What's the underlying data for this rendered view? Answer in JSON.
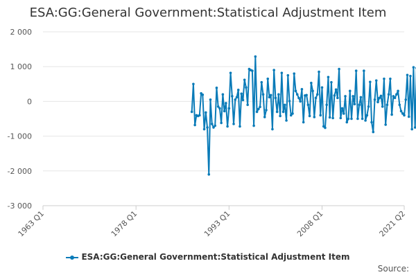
{
  "source_label": "Source:",
  "colors": {
    "series": "#0a7bb8",
    "grid": "#e6e6e6",
    "axis": "#cccccc"
  },
  "chart_data": {
    "type": "line",
    "title": "ESA:GG:General Government:Statistical Adjustment Item",
    "xlabel": "",
    "ylabel": "",
    "grid": true,
    "legend_position": "bottom",
    "x_unit": "quarter",
    "xlim": [
      "1963 Q1",
      "2021 Q2"
    ],
    "ylim": [
      -3000,
      2000
    ],
    "y_ticks": [
      {
        "value": 2000,
        "label": "2 000"
      },
      {
        "value": 1000,
        "label": "1 000"
      },
      {
        "value": 0,
        "label": "0"
      },
      {
        "value": -1000,
        "label": "-1 000"
      },
      {
        "value": -2000,
        "label": "-2 000"
      },
      {
        "value": -3000,
        "label": "-3 000"
      }
    ],
    "x_ticks": [
      "1963 Q1",
      "1978 Q1",
      "1993 Q1",
      "2008 Q1",
      "2021 Q2"
    ],
    "series": [
      {
        "name": "ESA:GG:General Government:Statistical Adjustment Item",
        "start": "1987 Q1",
        "values": [
          -300,
          500,
          -680,
          -400,
          -420,
          -400,
          230,
          190,
          -800,
          -320,
          -750,
          -2100,
          50,
          -650,
          -750,
          -700,
          390,
          -150,
          -200,
          -620,
          200,
          -280,
          -50,
          -720,
          -200,
          820,
          150,
          -650,
          50,
          120,
          330,
          -720,
          220,
          40,
          620,
          400,
          -100,
          930,
          900,
          880,
          -700,
          1290,
          -300,
          -220,
          -160,
          550,
          200,
          -450,
          -250,
          650,
          120,
          180,
          -800,
          900,
          100,
          -300,
          200,
          -420,
          820,
          -300,
          -100,
          -550,
          750,
          10,
          -400,
          -350,
          800,
          300,
          200,
          100,
          0,
          350,
          -600,
          170,
          180,
          -100,
          -420,
          530,
          300,
          -450,
          100,
          200,
          850,
          -400,
          400,
          -720,
          -760,
          -100,
          700,
          -460,
          550,
          -480,
          170,
          340,
          100,
          930,
          -480,
          -200,
          -350,
          150,
          -600,
          -500,
          300,
          -500,
          150,
          -80,
          880,
          -500,
          -100,
          120,
          -500,
          880,
          -550,
          -400,
          -150,
          560,
          -600,
          -880,
          50,
          600,
          -20,
          100,
          160,
          -150,
          650,
          -670,
          -100,
          200,
          650,
          -380,
          150,
          100,
          200,
          300,
          -100,
          -280,
          -350,
          -400,
          50,
          760,
          -440,
          730,
          -800,
          980,
          -750,
          960,
          -350,
          200,
          -760,
          -450
        ]
      }
    ]
  }
}
